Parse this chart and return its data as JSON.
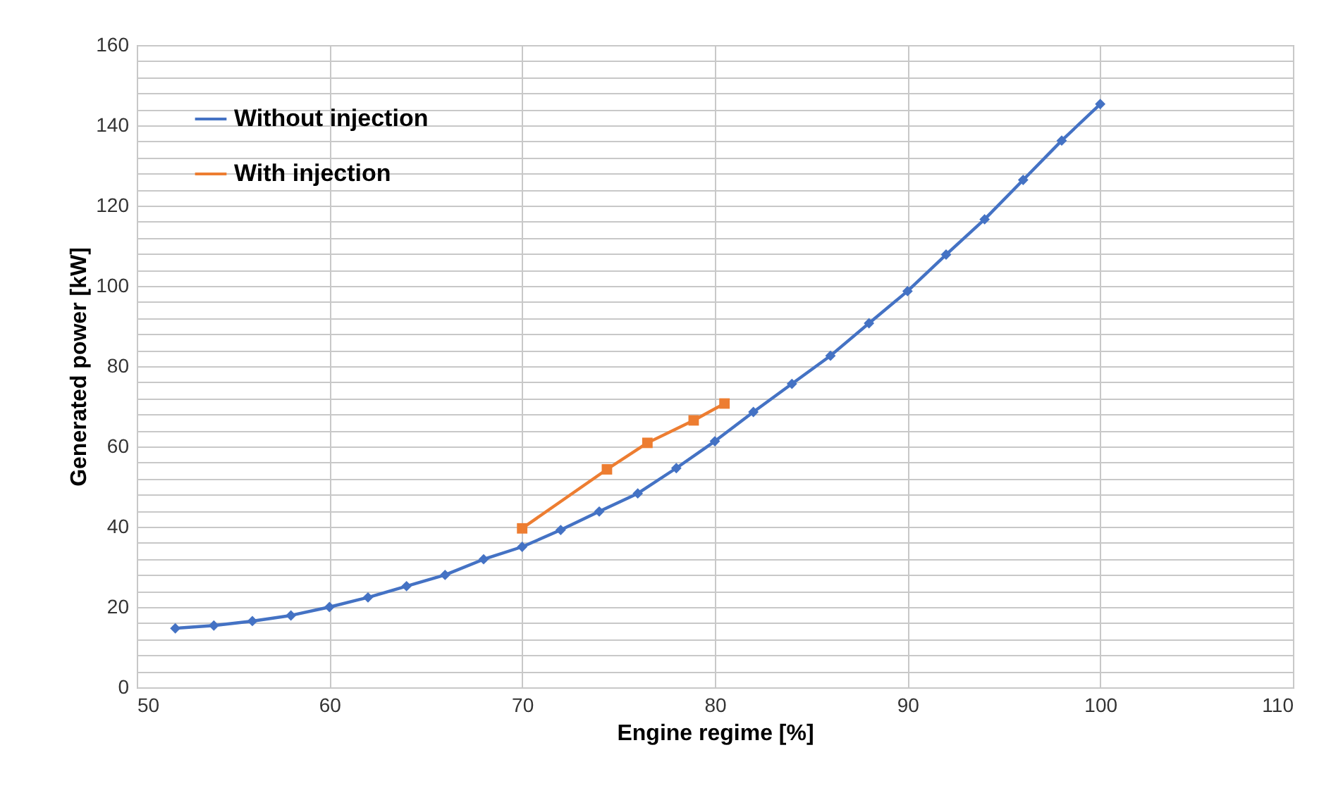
{
  "chart_data": {
    "type": "line",
    "xlabel": "Engine regime [%]",
    "ylabel": "Generated power [kW]",
    "xlim": [
      50,
      110
    ],
    "xticks": [
      50,
      60,
      70,
      80,
      90,
      100,
      110
    ],
    "ylim": [
      0,
      160
    ],
    "yticks": [
      0,
      {
        "value": 4,
        "label": null
      },
      {
        "value": 8,
        "label": null
      },
      {
        "value": 12,
        "label": null
      },
      {
        "value": 16,
        "label": null
      },
      20,
      {
        "value": 24,
        "label": null
      },
      {
        "value": 28,
        "label": null
      },
      {
        "value": 32,
        "label": null
      },
      {
        "value": 36,
        "label": null
      },
      40,
      {
        "value": 44,
        "label": null
      },
      {
        "value": 48,
        "label": null
      },
      {
        "value": 52,
        "label": null
      },
      {
        "value": 56,
        "label": null
      },
      60,
      {
        "value": 64,
        "label": null
      },
      {
        "value": 68,
        "label": null
      },
      {
        "value": 72,
        "label": null
      },
      {
        "value": 76,
        "label": null
      },
      80,
      {
        "value": 84,
        "label": null
      },
      {
        "value": 88,
        "label": null
      },
      {
        "value": 92,
        "label": null
      },
      {
        "value": 96,
        "label": null
      },
      100,
      {
        "value": 104,
        "label": null
      },
      {
        "value": 108,
        "label": null
      },
      {
        "value": 112,
        "label": null
      },
      {
        "value": 116,
        "label": null
      },
      120,
      {
        "value": 124,
        "label": null
      },
      {
        "value": 128,
        "label": null
      },
      {
        "value": 132,
        "label": null
      },
      {
        "value": 136,
        "label": null
      },
      140,
      {
        "value": 144,
        "label": null
      },
      {
        "value": 148,
        "label": null
      },
      {
        "value": 152,
        "label": null
      },
      {
        "value": 156,
        "label": null
      },
      160
    ],
    "grid": true,
    "legend": "top left",
    "line_style": "solid",
    "series": [
      {
        "name": "Without injection",
        "color": "#4472c4",
        "marker": "diamond",
        "x": [
          52,
          54,
          56,
          58,
          60,
          62,
          64,
          66,
          68,
          70,
          72,
          74,
          76,
          78,
          80,
          82,
          84,
          86,
          88,
          90,
          92,
          94,
          96,
          98,
          100
        ],
        "values": [
          14.7,
          15.4,
          16.5,
          17.9,
          20,
          22.4,
          25.2,
          28,
          31.9,
          35,
          39.2,
          43.8,
          48.3,
          54.6,
          61.3,
          68.6,
          75.6,
          82.6,
          90.7,
          98.7,
          107.8,
          116.6,
          126.4,
          136.2,
          145.3
        ]
      },
      {
        "name": "With injection",
        "color": "#ed7d31",
        "marker": "square",
        "x": [
          70,
          74.4,
          76.5,
          78.9,
          80.5
        ],
        "values": [
          39.6,
          54.3,
          60.9,
          66.5,
          70.7
        ]
      }
    ]
  }
}
